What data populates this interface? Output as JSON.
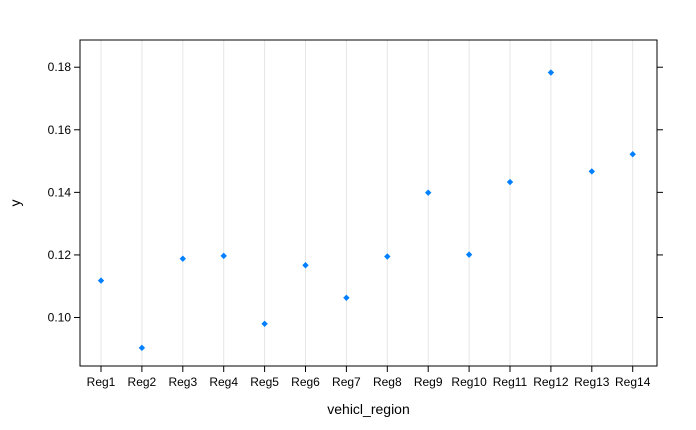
{
  "chart_data": {
    "type": "scatter",
    "xlabel": "vehicl_region",
    "ylabel": "y",
    "categories": [
      "Reg1",
      "Reg2",
      "Reg3",
      "Reg4",
      "Reg5",
      "Reg6",
      "Reg7",
      "Reg8",
      "Reg9",
      "Reg10",
      "Reg11",
      "Reg12",
      "Reg13",
      "Reg14"
    ],
    "values": [
      0.1118,
      0.0903,
      0.1188,
      0.1197,
      0.098,
      0.1167,
      0.1063,
      0.1195,
      0.1399,
      0.1201,
      0.1433,
      0.1783,
      0.1467,
      0.1522
    ],
    "ylim": [
      0.0845,
      0.1887
    ],
    "yticks": [
      0.1,
      0.12,
      0.14,
      0.16,
      0.18
    ],
    "ytick_labels": [
      "0.10",
      "0.12",
      "0.14",
      "0.16",
      "0.18"
    ],
    "grid": "vertical",
    "colors": {
      "point": "#0080ff",
      "grid": "#e6e6e6",
      "frame": "#000000"
    }
  }
}
